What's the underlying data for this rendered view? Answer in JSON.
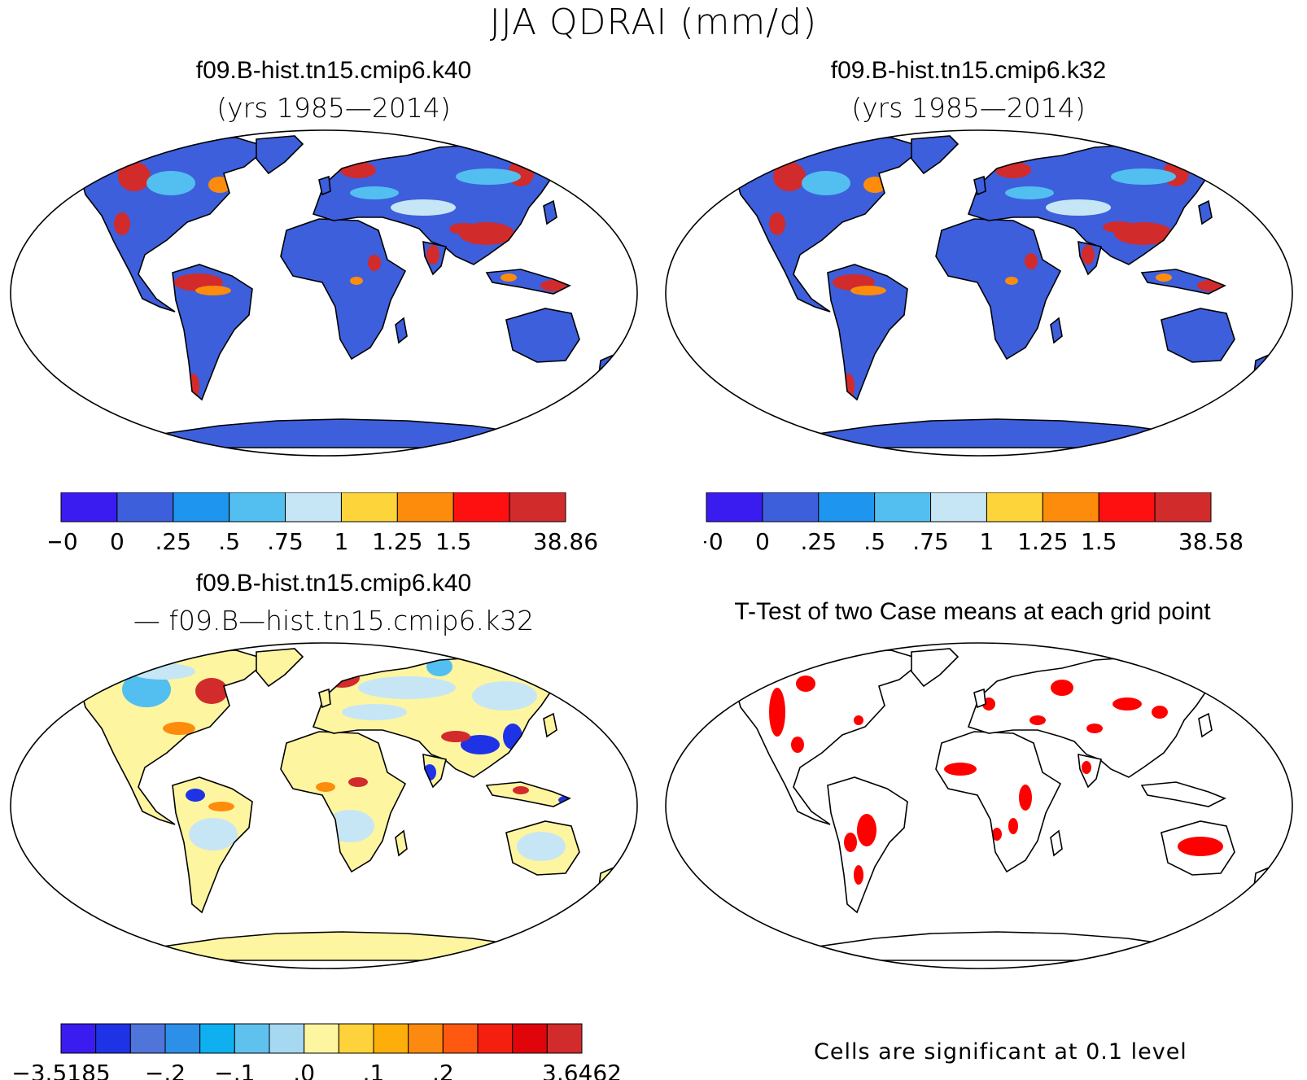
{
  "title": "JJA QDRAI (mm/d)",
  "panels": [
    {
      "id": "k40",
      "title": "f09.B-hist.tn15.cmip6.k40",
      "subtitle": "(yrs 1985—2014)"
    },
    {
      "id": "k32",
      "title": "f09.B-hist.tn15.cmip6.k32",
      "subtitle": "(yrs 1985—2014)"
    },
    {
      "id": "diff",
      "title": "f09.B-hist.tn15.cmip6.k40",
      "subtitle": "— f09.B—hist.tn15.cmip6.k32"
    },
    {
      "id": "ttest",
      "title": "T-Test of two Case means at each grid point",
      "subtitle": ""
    }
  ],
  "colorbars": {
    "k40": {
      "colors": [
        "#3a1cf0",
        "#3d5fdc",
        "#1e95ee",
        "#52bff0",
        "#c6e6f5",
        "#fdd43a",
        "#fd8c0c",
        "#ff1010",
        "#d22b2b"
      ],
      "labels": [
        "−0",
        "0",
        ".25",
        ".5",
        ".75",
        "1",
        "1.25",
        "1.5",
        "38.86"
      ]
    },
    "k32": {
      "colors": [
        "#3a1cf0",
        "#3d5fdc",
        "#1e95ee",
        "#52bff0",
        "#c6e6f5",
        "#fdd43a",
        "#fd8c0c",
        "#ff1010",
        "#d22b2b"
      ],
      "labels": [
        "−0",
        "0",
        ".25",
        ".5",
        ".75",
        "1",
        "1.25",
        "1.5",
        "38.58"
      ]
    },
    "diff": {
      "colors": [
        "#3a1cf0",
        "#1f33e6",
        "#4f74da",
        "#2c8fe8",
        "#0fb0f0",
        "#5fc1ee",
        "#a6d8f2",
        "#fdf5a0",
        "#fdd23a",
        "#fdae0a",
        "#fd8a10",
        "#ff5810",
        "#f51f10",
        "#e0050a",
        "#d22b2b"
      ],
      "labels": [
        "−3.5185",
        "−.2",
        "−.1",
        ".0",
        ".1",
        ".2",
        "3.6462"
      ]
    }
  },
  "map_colors": {
    "k40_land": "#3d5fdc",
    "k32_land": "#3d5fdc",
    "diff_land": "#fdf5a0",
    "significant": "#ff0000",
    "hot": "#d22b2b",
    "warm": "#fd8c0c",
    "yellow": "#fdd43a",
    "light": "#c6e6f5",
    "cyan": "#52bff0",
    "deep_blue": "#1f33e6"
  },
  "footnote": "Cells are significant at 0.1 level"
}
